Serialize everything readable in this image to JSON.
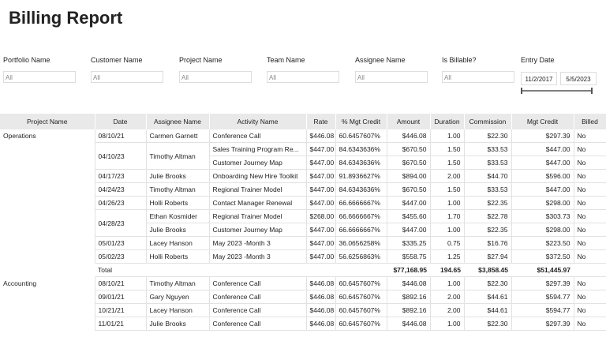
{
  "header": {
    "title": "Billing Report"
  },
  "filters": [
    {
      "label": "Portfolio Name",
      "values": [
        "All"
      ]
    },
    {
      "label": "Customer Name",
      "values": [
        "All"
      ]
    },
    {
      "label": "Project Name",
      "values": [
        "All"
      ]
    },
    {
      "label": "Team Name",
      "values": [
        "All"
      ]
    },
    {
      "label": "Assignee Name",
      "values": [
        "All"
      ]
    },
    {
      "label": "Is Billable?",
      "values": [
        "All"
      ]
    },
    {
      "label": "Entry Date",
      "values": [
        "11/2/2017",
        "5/5/2023"
      ]
    }
  ],
  "table": {
    "columns": [
      "Project Name",
      "Date",
      "Assignee Name",
      "Activity Name",
      "Rate",
      "% Mgt Credit",
      "Amount",
      "Duration",
      "Commission",
      "Mgt Credit",
      "Billed"
    ],
    "groups": [
      {
        "project": "Operations",
        "rows": [
          {
            "date": "08/10/21",
            "assignee": "Carmen Garnett",
            "activity": "Conference Call",
            "rate": "$446.08",
            "pct": "60.6457607%",
            "amount": "$446.08",
            "duration": "1.00",
            "commission": "$22.30",
            "mgt": "$297.39",
            "billed": "No"
          },
          {
            "date": "04/10/23",
            "assignee": "Timothy Altman",
            "activity": "Sales Training Program Re...",
            "rate": "$447.00",
            "pct": "84.6343636%",
            "amount": "$670.50",
            "duration": "1.50",
            "commission": "$33.53",
            "mgt": "$447.00",
            "billed": "No"
          },
          {
            "activity": "Customer Journey Map",
            "rate": "$447.00",
            "pct": "84.6343636%",
            "amount": "$670.50",
            "duration": "1.50",
            "commission": "$33.53",
            "mgt": "$447.00",
            "billed": "No"
          },
          {
            "date": "04/17/23",
            "assignee": "Julie Brooks",
            "activity": "Onboarding New Hire Toolkit",
            "rate": "$447.00",
            "pct": "91.8936627%",
            "amount": "$894.00",
            "duration": "2.00",
            "commission": "$44.70",
            "mgt": "$596.00",
            "billed": "No"
          },
          {
            "date": "04/24/23",
            "assignee": "Timothy Altman",
            "activity": "Regional Trainer Model",
            "rate": "$447.00",
            "pct": "84.6343636%",
            "amount": "$670.50",
            "duration": "1.50",
            "commission": "$33.53",
            "mgt": "$447.00",
            "billed": "No"
          },
          {
            "date": "04/26/23",
            "assignee": "Holli Roberts",
            "activity": "Contact Manager Renewal",
            "rate": "$447.00",
            "pct": "66.6666667%",
            "amount": "$447.00",
            "duration": "1.00",
            "commission": "$22.35",
            "mgt": "$298.00",
            "billed": "No"
          },
          {
            "date": "04/28/23",
            "assignee": "Ethan Kosmider",
            "activity": "Regional Trainer Model",
            "rate": "$268.00",
            "pct": "66.6666667%",
            "amount": "$455.60",
            "duration": "1.70",
            "commission": "$22.78",
            "mgt": "$303.73",
            "billed": "No"
          },
          {
            "assignee": "Julie Brooks",
            "activity": "Customer Journey Map",
            "rate": "$447.00",
            "pct": "66.6666667%",
            "amount": "$447.00",
            "duration": "1.00",
            "commission": "$22.35",
            "mgt": "$298.00",
            "billed": "No"
          },
          {
            "date": "05/01/23",
            "assignee": "Lacey Hanson",
            "activity": "May 2023 -Month 3",
            "rate": "$447.00",
            "pct": "36.0656258%",
            "amount": "$335.25",
            "duration": "0.75",
            "commission": "$16.76",
            "mgt": "$223.50",
            "billed": "No"
          },
          {
            "date": "05/02/23",
            "assignee": "Holli Roberts",
            "activity": "May 2023 -Month 3",
            "rate": "$447.00",
            "pct": "56.6256863%",
            "amount": "$558.75",
            "duration": "1.25",
            "commission": "$27.94",
            "mgt": "$372.50",
            "billed": "No"
          }
        ],
        "total": {
          "label": "Total",
          "amount": "$77,168.95",
          "duration": "194.65",
          "commission": "$3,858.45",
          "mgt": "$51,445.97"
        }
      },
      {
        "project": "Accounting",
        "rows": [
          {
            "date": "08/10/21",
            "assignee": "Timothy Altman",
            "activity": "Conference Call",
            "rate": "$446.08",
            "pct": "60.6457607%",
            "amount": "$446.08",
            "duration": "1.00",
            "commission": "$22.30",
            "mgt": "$297.39",
            "billed": "No"
          },
          {
            "date": "09/01/21",
            "assignee": "Gary Nguyen",
            "activity": "Conference Call",
            "rate": "$446.08",
            "pct": "60.6457607%",
            "amount": "$892.16",
            "duration": "2.00",
            "commission": "$44.61",
            "mgt": "$594.77",
            "billed": "No"
          },
          {
            "date": "10/21/21",
            "assignee": "Lacey Hanson",
            "activity": "Conference Call",
            "rate": "$446.08",
            "pct": "60.6457607%",
            "amount": "$892.16",
            "duration": "2.00",
            "commission": "$44.61",
            "mgt": "$594.77",
            "billed": "No"
          },
          {
            "date": "11/01/21",
            "assignee": "Julie Brooks",
            "activity": "Conference Call",
            "rate": "$446.08",
            "pct": "60.6457607%",
            "amount": "$446.08",
            "duration": "1.00",
            "commission": "$22.30",
            "mgt": "$297.39",
            "billed": "No"
          }
        ]
      }
    ]
  }
}
